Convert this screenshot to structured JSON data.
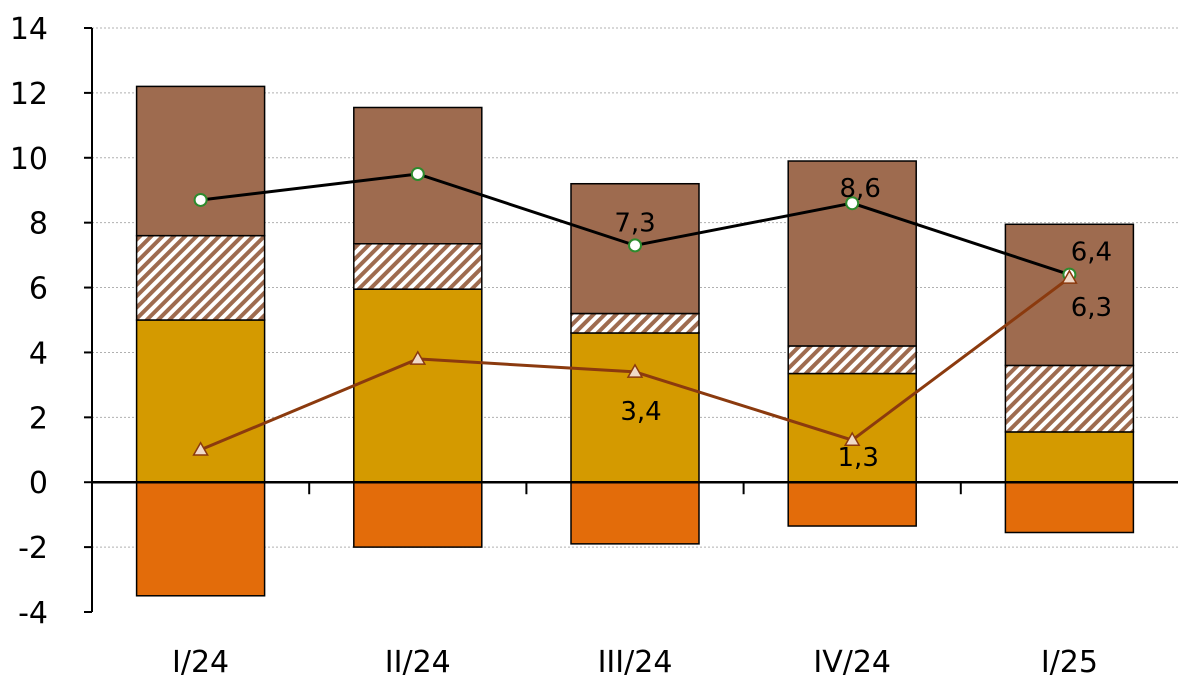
{
  "chart_data": {
    "type": "bar",
    "stacked": true,
    "categories": [
      "I/24",
      "II/24",
      "III/24",
      "IV/24",
      "I/25"
    ],
    "ylim": [
      -4,
      14
    ],
    "yticks": [
      -4,
      -2,
      0,
      2,
      4,
      6,
      8,
      10,
      12,
      14
    ],
    "ytick_labels": [
      "-4",
      "-2",
      "0",
      "2",
      "4",
      "6",
      "8",
      "10",
      "12",
      "14"
    ],
    "grid": true,
    "legend": "none",
    "title": "",
    "xlabel": "",
    "ylabel": "",
    "series": [
      {
        "values": [
          5.0,
          5.95,
          4.6,
          3.35,
          1.55
        ],
        "color": "#D49A00",
        "pattern": "solid"
      },
      {
        "values": [
          2.6,
          1.4,
          0.6,
          0.85,
          2.05
        ],
        "color": "#9E6B4F",
        "pattern": "hatch"
      },
      {
        "values": [
          4.6,
          4.2,
          4.0,
          5.7,
          4.35
        ],
        "color": "#9E6B4F",
        "pattern": "solid"
      },
      {
        "values": [
          -3.5,
          -2.0,
          -1.9,
          -1.35,
          -1.55
        ],
        "color": "#E36C0A",
        "pattern": "solid"
      }
    ],
    "lines": [
      {
        "values": [
          8.7,
          9.5,
          7.3,
          8.6,
          6.4
        ],
        "color": "#000000",
        "marker": "circle",
        "marker_fill": "#FFFFFF",
        "marker_stroke": "#2E8B2E",
        "labels": [
          "",
          "",
          "7,3",
          "8,6",
          "6,4"
        ]
      },
      {
        "values": [
          1.0,
          3.8,
          3.4,
          1.3,
          6.3
        ],
        "color": "#8B3A0E",
        "marker": "triangle",
        "marker_fill": "#F0D9C8",
        "marker_stroke": "#8B3A0E",
        "labels": [
          "",
          "",
          "3,4",
          "1,3",
          "6,3"
        ]
      }
    ]
  }
}
